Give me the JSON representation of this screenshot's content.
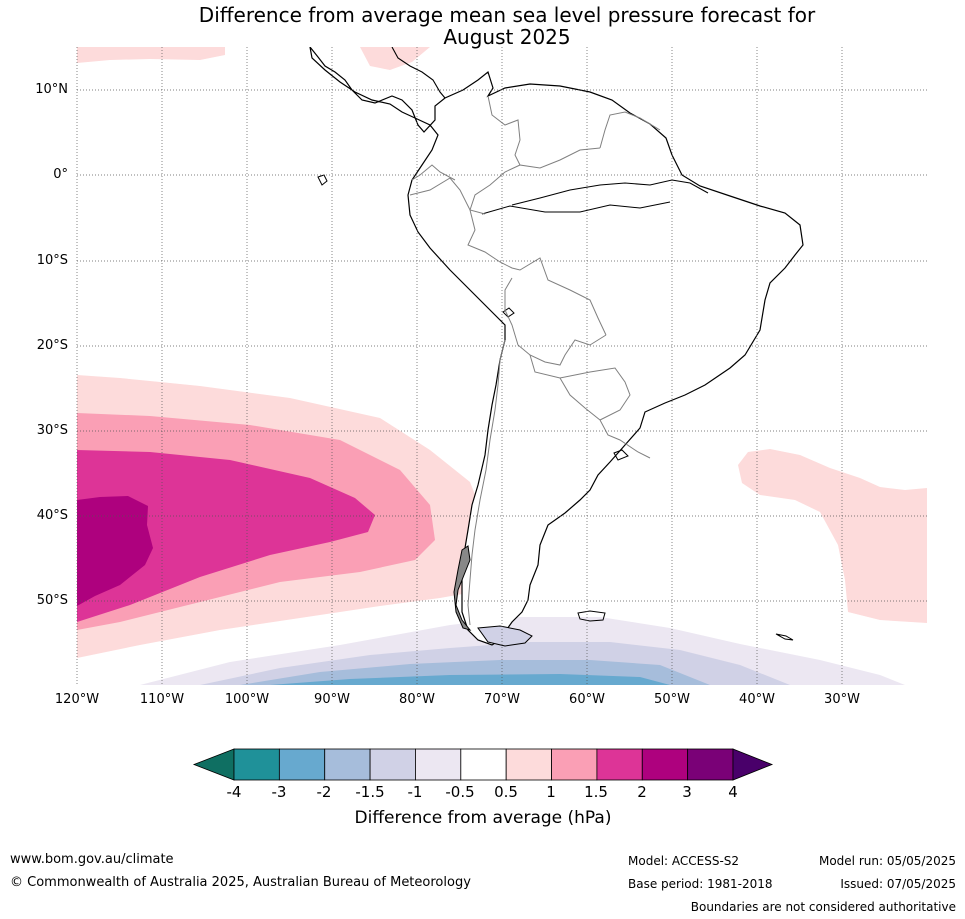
{
  "title": {
    "line1": "Difference from average mean sea level pressure forecast for",
    "line2": "August 2025"
  },
  "map": {
    "lat_labels": [
      "10°N",
      "0°",
      "10°S",
      "20°S",
      "30°S",
      "40°S",
      "50°S"
    ],
    "lon_labels": [
      "120°W",
      "110°W",
      "100°W",
      "90°W",
      "80°W",
      "70°W",
      "60°W",
      "50°W",
      "40°W",
      "30°W"
    ],
    "land_color": "#ffffff",
    "coast_color": "#000000",
    "border_color": "#808080"
  },
  "colorbar": {
    "ticks": [
      "-4",
      "-3",
      "-2",
      "-1.5",
      "-1",
      "-0.5",
      "0.5",
      "1",
      "1.5",
      "2",
      "3",
      "4"
    ],
    "colors": [
      "#0f6f62",
      "#1f9199",
      "#67a9cf",
      "#a6bddb",
      "#d0d1e6",
      "#ece7f2",
      "#ffffff",
      "#fddbdb",
      "#fa9fb5",
      "#dd3497",
      "#ae017e",
      "#7a0177",
      "#49006a"
    ],
    "label": "Difference from average (hPa)"
  },
  "footer": {
    "website": "www.bom.gov.au/climate",
    "copyright": "© Commonwealth of Australia 2025, Australian Bureau of Meteorology",
    "model": "Model: ACCESS-S2",
    "base_period": "Base period: 1981-2018",
    "model_run": "Model run: 05/05/2025",
    "issued": "Issued: 07/05/2025",
    "disclaimer": "Boundaries are not considered authoritative"
  }
}
